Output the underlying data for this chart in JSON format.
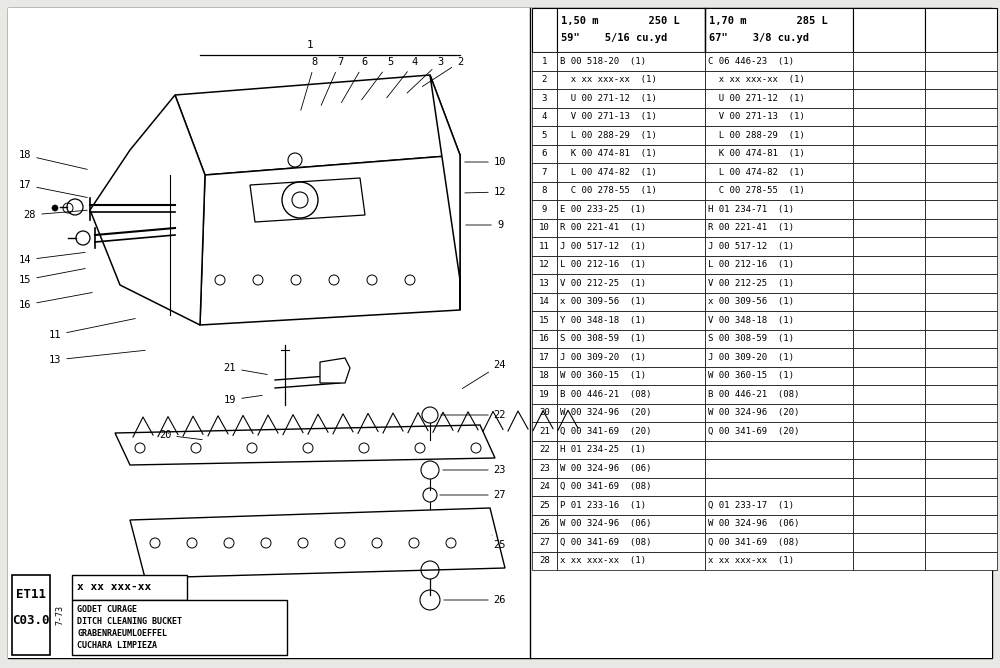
{
  "bg_color": "#e8e8e4",
  "table_bg": "#ffffff",
  "border_color": "#000000",
  "table_rows": [
    [
      "1",
      "B 00 518-20  (1)",
      "C 06 446-23  (1)"
    ],
    [
      "2",
      "  x xx xxx-xx  (1)",
      "  x xx xxx-xx  (1)"
    ],
    [
      "3",
      "  U 00 271-12  (1)",
      "  U 00 271-12  (1)"
    ],
    [
      "4",
      "  V 00 271-13  (1)",
      "  V 00 271-13  (1)"
    ],
    [
      "5",
      "  L 00 288-29  (1)",
      "  L 00 288-29  (1)"
    ],
    [
      "6",
      "  K 00 474-81  (1)",
      "  K 00 474-81  (1)"
    ],
    [
      "7",
      "  L 00 474-82  (1)",
      "  L 00 474-82  (1)"
    ],
    [
      "8",
      "  C 00 278-55  (1)",
      "  C 00 278-55  (1)"
    ],
    [
      "9",
      "E 00 233-25  (1)",
      "H 01 234-71  (1)"
    ],
    [
      "10",
      "R 00 221-41  (1)",
      "R 00 221-41  (1)"
    ],
    [
      "11",
      "J 00 517-12  (1)",
      "J 00 517-12  (1)"
    ],
    [
      "12",
      "L 00 212-16  (1)",
      "L 00 212-16  (1)"
    ],
    [
      "13",
      "V 00 212-25  (1)",
      "V 00 212-25  (1)"
    ],
    [
      "14",
      "x 00 309-56  (1)",
      "x 00 309-56  (1)"
    ],
    [
      "15",
      "Y 00 348-18  (1)",
      "V 00 348-18  (1)"
    ],
    [
      "16",
      "S 00 308-59  (1)",
      "S 00 308-59  (1)"
    ],
    [
      "17",
      "J 00 309-20  (1)",
      "J 00 309-20  (1)"
    ],
    [
      "18",
      "W 00 360-15  (1)",
      "W 00 360-15  (1)"
    ],
    [
      "19",
      "B 00 446-21  (08)",
      "B 00 446-21  (08)"
    ],
    [
      "20",
      "W 00 324-96  (20)",
      "W 00 324-96  (20)"
    ],
    [
      "21",
      "Q 00 341-69  (20)",
      "Q 00 341-69  (20)"
    ],
    [
      "22",
      "H 01 234-25  (1)",
      ""
    ],
    [
      "23",
      "W 00 324-96  (06)",
      ""
    ],
    [
      "24",
      "Q 00 341-69  (08)",
      ""
    ],
    [
      "25",
      "P 01 233-16  (1)",
      "Q 01 233-17  (1)"
    ],
    [
      "26",
      "W 00 324-96  (06)",
      "W 00 324-96  (06)"
    ],
    [
      "27",
      "Q 00 341-69  (08)",
      "Q 00 341-69  (08)"
    ],
    [
      "28",
      "x xx xxx-xx  (1)",
      "x xx xxx-xx  (1)"
    ]
  ],
  "label_code": "ET11\nC03.0",
  "label_date": "7-73",
  "label_part_code": "x xx xxx-xx",
  "label_lines": [
    "GODET CURAGE",
    "DITCH CLEANING BUCKET",
    "GRABENRAEUMLOEFFEL",
    "CUCHARA LIMPIEZA"
  ]
}
